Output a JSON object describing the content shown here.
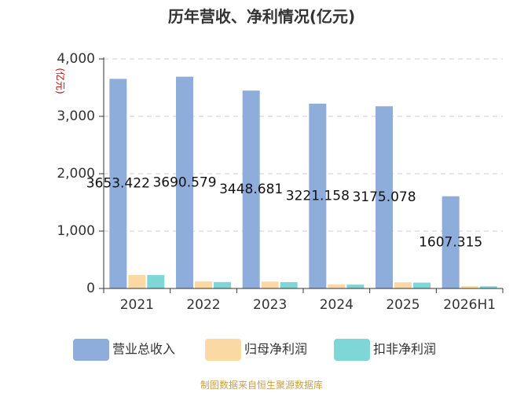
{
  "chart_data": {
    "type": "bar",
    "title": "历年营收、净利情况(亿元)",
    "ylabel": "(亿元)",
    "ylim": [
      0,
      4000
    ],
    "yticks": [
      "0",
      "1,000",
      "2,000",
      "3,000",
      "4,000"
    ],
    "grid": true,
    "legend_position": "bottom",
    "categories": [
      "2021",
      "2022",
      "2023",
      "2024",
      "2025",
      "2026H1"
    ],
    "series": [
      {
        "name": "营业总收入",
        "color": "#8eadda",
        "values": [
          3653.422,
          3690.579,
          3448.681,
          3221.158,
          3175.078,
          1607.315
        ],
        "labels": [
          "3653.422",
          "3690.579",
          "3448.681",
          "3221.158",
          "3175.078",
          "1607.315"
        ]
      },
      {
        "name": "归母净利润",
        "color": "#fcd9a4",
        "values": [
          235,
          122,
          120,
          72,
          107,
          40
        ]
      },
      {
        "name": "扣非净利润",
        "color": "#7fd6d6",
        "values": [
          235,
          112,
          110,
          67,
          102,
          38
        ]
      }
    ],
    "colors": {
      "axis": "#333333",
      "grid": "#cccccc",
      "unit_label": "#cc0000",
      "source": "#c9a050"
    }
  },
  "footer": {
    "source": "制图数据来自恒生聚源数据库"
  }
}
